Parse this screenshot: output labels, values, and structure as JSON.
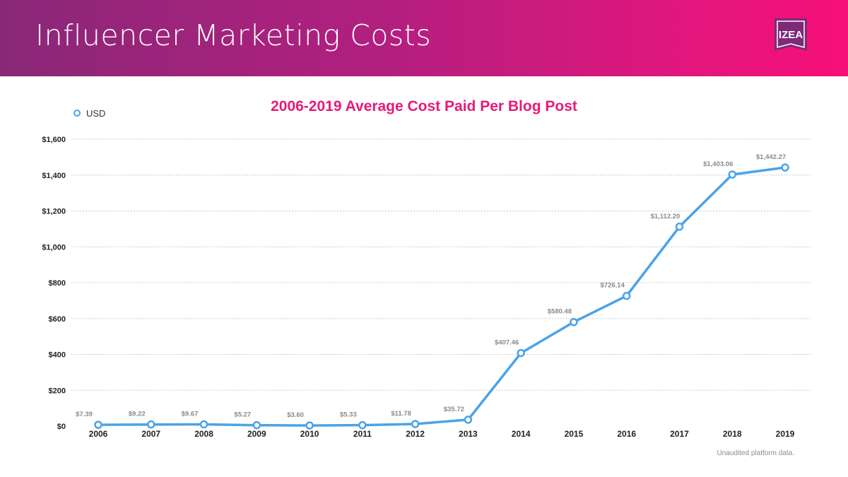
{
  "header": {
    "title": "Influencer Marketing Costs",
    "logo_text": "IZEA",
    "colors": {
      "gradient_start": "#8a2878",
      "gradient_end": "#f70f78"
    }
  },
  "chart_data": {
    "type": "line",
    "title": "2006-2019 Average Cost Paid Per Blog Post",
    "xlabel": "",
    "ylabel": "",
    "legend": [
      "USD"
    ],
    "legend_position": "top-left",
    "categories": [
      "2006",
      "2007",
      "2008",
      "2009",
      "2010",
      "2011",
      "2012",
      "2013",
      "2014",
      "2015",
      "2016",
      "2017",
      "2018",
      "2019"
    ],
    "series": [
      {
        "name": "USD",
        "color": "#4aa3e8",
        "values": [
          7.39,
          9.22,
          9.67,
          5.27,
          3.6,
          5.33,
          11.78,
          35.72,
          407.46,
          580.48,
          726.14,
          1112.2,
          1403.06,
          1442.27
        ],
        "labels": [
          "$7.39",
          "$9.22",
          "$9.67",
          "$5.27",
          "$3.60",
          "$5.33",
          "$11.78",
          "$35.72",
          "$407.46",
          "$580.48",
          "$726.14",
          "$1,112.20",
          "$1,403.06",
          "$1,442.27"
        ]
      }
    ],
    "ylim": [
      0,
      1600
    ],
    "yticks": [
      0,
      200,
      400,
      600,
      800,
      1000,
      1200,
      1400,
      1600
    ],
    "ytick_labels": [
      "$0",
      "$200",
      "$400",
      "$600",
      "$800",
      "$1,000",
      "$1,200",
      "$1,400",
      "$1,600"
    ],
    "grid": true
  },
  "footnote": "Unaudited platform data."
}
